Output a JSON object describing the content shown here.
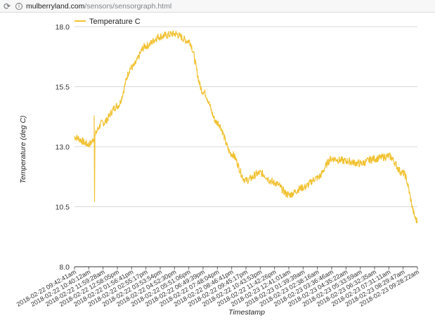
{
  "browser": {
    "reload_icon": "reload-icon",
    "info_icon": "info-icon",
    "url_host": "mulberryland.com",
    "url_path": "/sensors/sensorgraph.html"
  },
  "chart_data": {
    "type": "line",
    "title": "",
    "xlabel": "Timestamp",
    "ylabel": "Temperature (deg C)",
    "ylim": [
      8.0,
      18.0
    ],
    "yticks": [
      "18.0",
      "15.5",
      "13.0",
      "10.5",
      "8.0"
    ],
    "grid": true,
    "legend_position": "top-left",
    "series": [
      {
        "name": "Temperature C",
        "color": "#f1c232",
        "x": [
          "2018-02-22 09:42:41am",
          "2018-02-22 10:40:12am",
          "2018-02-22 11:59:28am",
          "2018-02-22 12:58:05pm",
          "2018-02-22 01:56:41pm",
          "2018-02-22 02:55:17pm",
          "2018-02-22 03:53:54pm",
          "2018-02-22 04:52:30pm",
          "2018-02-22 05:51:06pm",
          "2018-02-22 06:49:39pm",
          "2018-02-22 07:48:04pm",
          "2018-02-22 08:46:41pm",
          "2018-02-22 09:45:17pm",
          "2018-02-22 10:43:53pm",
          "2018-02-22 11:42:26pm",
          "2018-02-23 12:41:01am",
          "2018-02-23 01:39:39am",
          "2018-02-23 02:38:16am",
          "2018-02-23 03:36:46am",
          "2018-02-23 04:35:22am",
          "2018-02-23 05:33:59am",
          "2018-02-23 06:32:35am",
          "2018-02-23 07:31:11am",
          "2018-02-23 08:29:47am",
          "2018-02-23 09:28:22am"
        ],
        "values": [
          13.4,
          13.1,
          14.0,
          14.7,
          16.3,
          17.2,
          17.6,
          17.7,
          17.4,
          15.3,
          14.0,
          12.7,
          11.6,
          11.9,
          11.5,
          11.0,
          11.3,
          11.7,
          12.5,
          12.4,
          12.3,
          12.5,
          12.6,
          11.9,
          9.9
        ]
      }
    ]
  }
}
